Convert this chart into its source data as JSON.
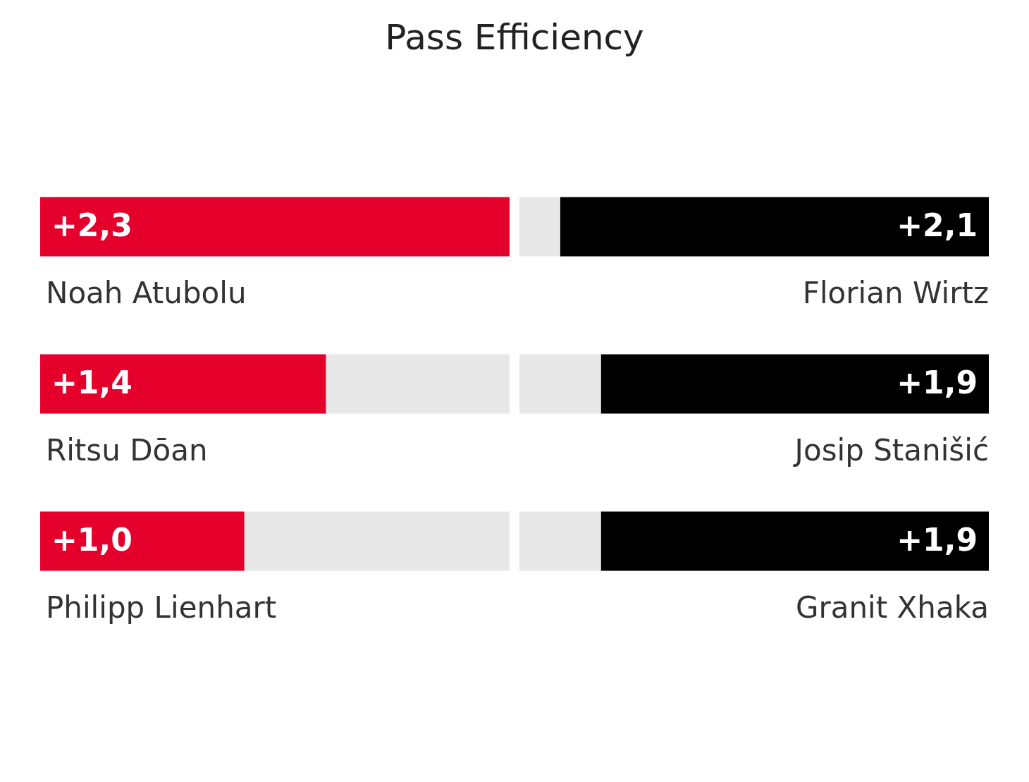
{
  "chart_data": [
    {
      "type": "bar",
      "title": "Pass Efficiency",
      "orientation": "horizontal",
      "categories": [
        "Noah Atubolu",
        "Ritsu Dōan",
        "Philipp Lienhart"
      ],
      "values": [
        2.3,
        1.4,
        1.0
      ],
      "value_labels": [
        "+2,3",
        "+1,4",
        "+1,0"
      ],
      "color": "#e4002b",
      "xlim": [
        0,
        2.3
      ]
    },
    {
      "type": "bar",
      "orientation": "horizontal",
      "categories": [
        "Florian Wirtz",
        "Josip Stanišić",
        "Granit Xhaka"
      ],
      "values": [
        2.1,
        1.9,
        1.9
      ],
      "value_labels": [
        "+2,1",
        "+1,9",
        "+1,9"
      ],
      "color": "#000000",
      "xlim": [
        2.3,
        0
      ]
    }
  ]
}
